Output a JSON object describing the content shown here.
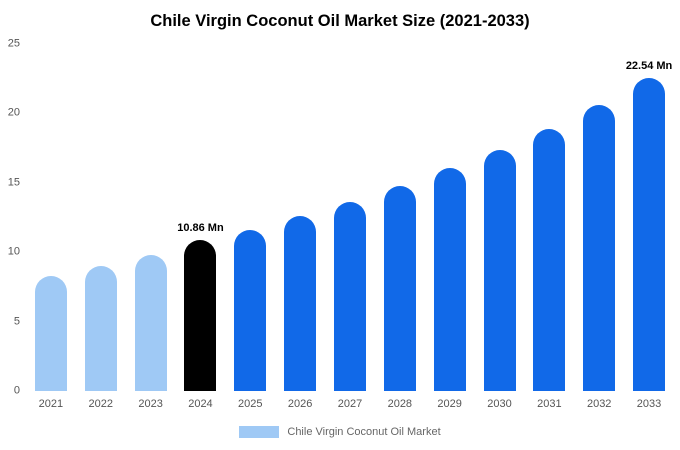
{
  "chart": {
    "title": "Chile Virgin Coconut Oil Market Size (2021-2033)"
  },
  "legend": {
    "label": "Chile Virgin Coconut Oil Market",
    "swatch_color": "#9fc9f5"
  },
  "chart_data": {
    "type": "bar",
    "title": "Chile Virgin Coconut Oil Market Size (2021-2033)",
    "xlabel": "",
    "ylabel": "",
    "unit": "Mn",
    "categories": [
      "2021",
      "2022",
      "2023",
      "2024",
      "2025",
      "2026",
      "2027",
      "2028",
      "2029",
      "2030",
      "2031",
      "2032",
      "2033"
    ],
    "values": [
      8.3,
      9.0,
      9.8,
      10.86,
      11.6,
      12.6,
      13.6,
      14.8,
      16.1,
      17.4,
      18.9,
      20.6,
      22.54
    ],
    "ylim": [
      0,
      25
    ],
    "y_ticks": [
      0,
      5,
      10,
      15,
      20,
      25
    ],
    "annotations": {
      "2024": "10.86 Mn",
      "2033": "22.54 Mn"
    },
    "colors": {
      "past": "#9fc9f5",
      "current": "#000000",
      "forecast": "#1169e8"
    },
    "color_roles": [
      "past",
      "past",
      "past",
      "current",
      "forecast",
      "forecast",
      "forecast",
      "forecast",
      "forecast",
      "forecast",
      "forecast",
      "forecast",
      "forecast"
    ],
    "grid": false,
    "legend_position": "bottom",
    "legend_entries": [
      "Chile Virgin Coconut Oil Market"
    ]
  }
}
